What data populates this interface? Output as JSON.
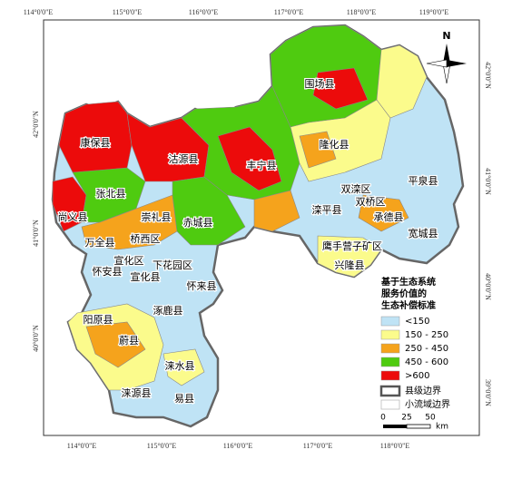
{
  "axis_labels": {
    "top": [
      "114°0'0\"E",
      "115°0'0\"E",
      "116°0'0\"E",
      "117°0'0\"E",
      "118°0'0\"E",
      "119°0'0\"E"
    ],
    "bottom": [
      "114°0'0\"E",
      "115°0'0\"E",
      "116°0'0\"E",
      "117°0'0\"E",
      "118°0'0\"E"
    ],
    "left": [
      "42°0'0\"N",
      "41°0'0\"N",
      "40°0'0\"N"
    ],
    "right": [
      "42°0'0\"N",
      "41°0'0\"N",
      "40°0'0\"N",
      "39°0'0\"N"
    ]
  },
  "places": [
    "围场县",
    "康保县",
    "沽源县",
    "丰宁县",
    "隆化县",
    "张北县",
    "尚义县",
    "崇礼县",
    "赤城县",
    "双滦区",
    "双桥区",
    "滦平县",
    "承德县",
    "平泉县",
    "宽城县",
    "万全县",
    "桥西区",
    "宣化区",
    "下花园区",
    "宣化县",
    "怀安县",
    "怀来县",
    "鹰手营子矿区",
    "兴隆县",
    "阳原县",
    "涿鹿县",
    "蔚县",
    "涞水县",
    "涞源县",
    "易县"
  ],
  "legend": {
    "title": [
      "基于生态系统",
      "服务价值的",
      "生态补偿标准"
    ],
    "classes": [
      {
        "label": "<150",
        "color": "#bfe3f5"
      },
      {
        "label": "150 - 250",
        "color": "#fbfb8c"
      },
      {
        "label": "250 - 450",
        "color": "#f5a31c"
      },
      {
        "label": "450 - 600",
        "color": "#4fcb10"
      },
      {
        "label": ">600",
        "color": "#ec0b0b"
      }
    ],
    "boundaries": [
      "县级边界",
      "小流域边界"
    ]
  },
  "scale": {
    "ticks": [
      "0",
      "25",
      "50"
    ],
    "unit": "km"
  },
  "compass": "N"
}
